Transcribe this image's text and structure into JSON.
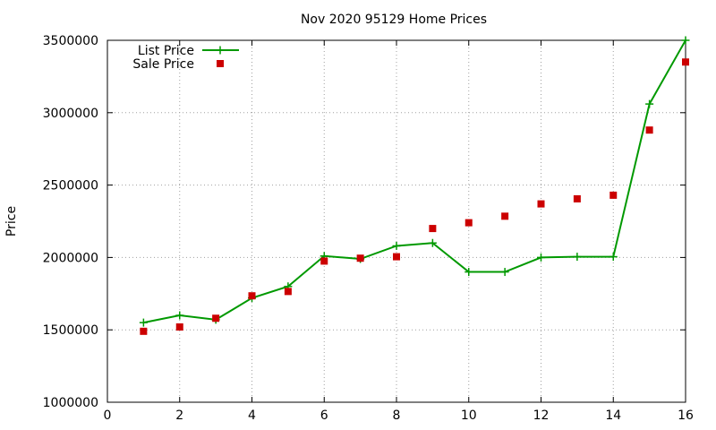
{
  "chart_data": {
    "type": "line",
    "title": "Nov 2020 95129 Home Prices",
    "xlabel": "",
    "ylabel": "Price",
    "xlim": [
      0,
      16
    ],
    "ylim": [
      1000000,
      3500000
    ],
    "xticks": [
      0,
      2,
      4,
      6,
      8,
      10,
      12,
      14,
      16
    ],
    "yticks": [
      1000000,
      1500000,
      2000000,
      2500000,
      3000000,
      3500000
    ],
    "xtick_labels": [
      "0",
      "2",
      "4",
      "6",
      "8",
      "10",
      "12",
      "14",
      "16"
    ],
    "ytick_labels": [
      "1000000",
      "1500000",
      "2000000",
      "2500000",
      "3000000",
      "3500000"
    ],
    "grid": true,
    "legend_position": "top-left",
    "series": [
      {
        "name": "List Price",
        "kind": "linespoints",
        "color": "#009900",
        "marker": "plus",
        "x": [
          1,
          2,
          3,
          4,
          5,
          6,
          7,
          8,
          9,
          10,
          11,
          12,
          13,
          14,
          15,
          16
        ],
        "y": [
          1550000,
          1600000,
          1570000,
          1720000,
          1800000,
          2010000,
          1990000,
          2080000,
          2100000,
          1900000,
          1900000,
          2000000,
          2005000,
          2005000,
          3060000,
          3500000
        ]
      },
      {
        "name": "Sale Price",
        "kind": "points",
        "color": "#cc0000",
        "marker": "square",
        "x": [
          1,
          2,
          3,
          4,
          5,
          6,
          7,
          8,
          9,
          10,
          11,
          12,
          13,
          14,
          15,
          16
        ],
        "y": [
          1490000,
          1520000,
          1580000,
          1735000,
          1765000,
          1975000,
          1995000,
          2005000,
          2200000,
          2240000,
          2285000,
          2370000,
          2405000,
          2430000,
          2880000,
          3350000
        ]
      }
    ]
  }
}
